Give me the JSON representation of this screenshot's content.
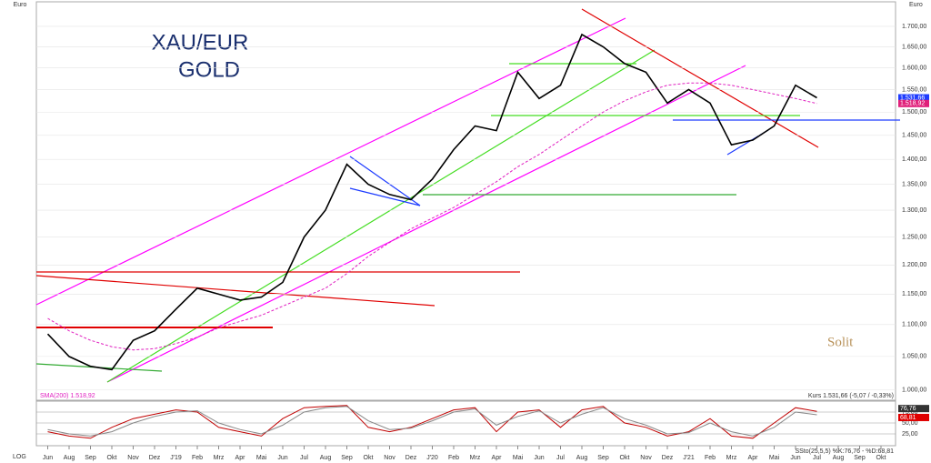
{
  "chart_data": [
    {
      "type": "line",
      "log_scale": true,
      "grid": true,
      "title": "XAU/EUR",
      "subtitle": "GOLD",
      "y_axis_label": "Euro",
      "scale_label": "LOG",
      "sma_label": "SMA(200) 1.518,92",
      "quote_label": "Kurs 1.531,66 (-5,07 / -0,33%)",
      "brand": "Solit",
      "categories": [
        "Jun",
        "Aug",
        "Sep",
        "Okt",
        "Nov",
        "Dez",
        "J'19",
        "Feb",
        "Mrz",
        "Apr",
        "Mai",
        "Jun",
        "Jul",
        "Aug",
        "Sep",
        "Okt",
        "Nov",
        "Dez",
        "J'20",
        "Feb",
        "Mrz",
        "Apr",
        "Mai",
        "Jun",
        "Jul",
        "Aug",
        "Sep",
        "Okt",
        "Nov",
        "Dez",
        "J'21",
        "Feb",
        "Mrz",
        "Apr",
        "Mai",
        "Jun",
        "Jul",
        "Aug",
        "Sep",
        "Okt"
      ],
      "series": [
        {
          "name": "Kurs",
          "color": "#000000",
          "values": [
            1085,
            1050,
            1035,
            1030,
            1075,
            1090,
            1125,
            1160,
            1150,
            1140,
            1145,
            1170,
            1250,
            1300,
            1390,
            1350,
            1330,
            1320,
            1360,
            1420,
            1470,
            1460,
            1590,
            1530,
            1560,
            1680,
            1650,
            1610,
            1590,
            1520,
            1550,
            1520,
            1430,
            1440,
            1470,
            1560,
            1531.66,
            null,
            null,
            null
          ],
          "last_label": "1.531,66",
          "tag_color": "#1e3cff"
        },
        {
          "name": "SMA(200)",
          "color": "#e020c0",
          "values": [
            1110,
            1090,
            1075,
            1065,
            1060,
            1062,
            1070,
            1080,
            1095,
            1105,
            1115,
            1130,
            1145,
            1160,
            1185,
            1215,
            1240,
            1265,
            1285,
            1305,
            1330,
            1355,
            1385,
            1410,
            1440,
            1470,
            1500,
            1525,
            1545,
            1560,
            1565,
            1565,
            1560,
            1550,
            1540,
            1530,
            1518.92,
            null,
            null,
            null
          ],
          "last_label": "1.518,92",
          "tag_color": "#e0207a"
        }
      ],
      "ylim": [
        985,
        1762
      ],
      "yticks": [
        {
          "value": 1000,
          "label": "1.000,00"
        },
        {
          "value": 1050,
          "label": "1.050,00"
        },
        {
          "value": 1100,
          "label": "1.100,00"
        },
        {
          "value": 1150,
          "label": "1.150,00"
        },
        {
          "value": 1200,
          "label": "1.200,00"
        },
        {
          "value": 1250,
          "label": "1.250,00"
        },
        {
          "value": 1300,
          "label": "1.300,00"
        },
        {
          "value": 1350,
          "label": "1.350,00"
        },
        {
          "value": 1400,
          "label": "1.400,00"
        },
        {
          "value": 1450,
          "label": "1.450,00"
        },
        {
          "value": 1500,
          "label": "1.500,00"
        },
        {
          "value": 1550,
          "label": "1.550,00"
        },
        {
          "value": 1600,
          "label": "1.600,00"
        },
        {
          "value": 1650,
          "label": "1.650,00"
        },
        {
          "value": 1700,
          "label": "1.700,00"
        }
      ]
    },
    {
      "type": "line",
      "grid": true,
      "title": "SSto(25,5,5) %K:76,76 - %D:68,81",
      "series": [
        {
          "name": "%K",
          "color": "#c00000",
          "values": [
            30,
            20,
            15,
            40,
            60,
            70,
            80,
            75,
            40,
            30,
            20,
            60,
            85,
            88,
            90,
            40,
            30,
            40,
            60,
            80,
            85,
            30,
            75,
            80,
            40,
            80,
            88,
            50,
            40,
            20,
            30,
            60,
            20,
            15,
            50,
            85,
            76.76,
            null,
            null,
            null
          ],
          "last_label": "76,76",
          "tag_color": "#333333"
        },
        {
          "name": "%D",
          "color": "#888888",
          "values": [
            35,
            25,
            20,
            30,
            50,
            65,
            75,
            78,
            50,
            35,
            25,
            45,
            75,
            85,
            88,
            55,
            35,
            38,
            55,
            75,
            82,
            45,
            65,
            78,
            50,
            70,
            85,
            60,
            45,
            25,
            28,
            50,
            30,
            20,
            40,
            75,
            68.81,
            null,
            null,
            null
          ],
          "last_label": "68,81",
          "tag_color": "#e00000"
        }
      ],
      "ylim": [
        0,
        100
      ],
      "yticks": [
        {
          "value": 25,
          "label": "25,00"
        },
        {
          "value": 50,
          "label": "50,00"
        },
        {
          "value": 75,
          "label": "75,00"
        }
      ]
    }
  ]
}
